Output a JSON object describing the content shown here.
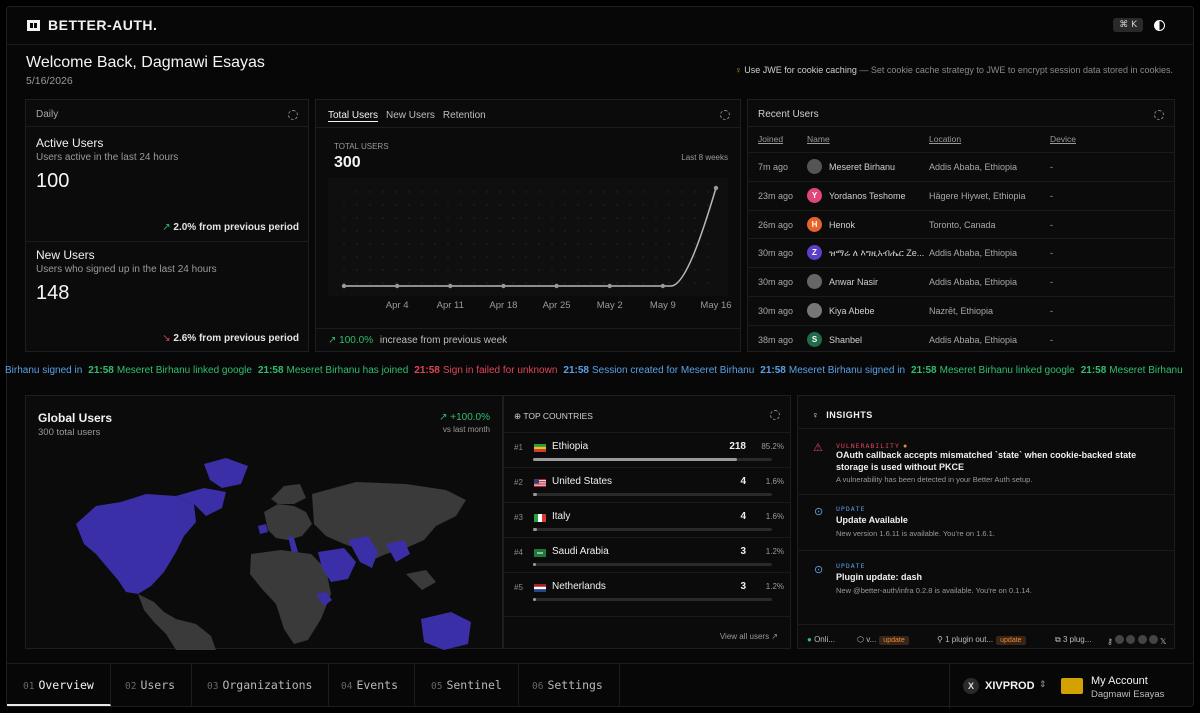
{
  "app": {
    "brand": "BETTER-AUTH.",
    "shortcut": "⌘ K"
  },
  "header": {
    "welcome": "Welcome Back, Dagmawi Esayas",
    "date": "5/16/2026",
    "tip_strong": "Use JWE for cookie caching",
    "tip_rest": "— Set cookie cache strategy to JWE to encrypt session data stored in cookies."
  },
  "daily": {
    "label": "Daily",
    "active": {
      "title": "Active Users",
      "subtitle": "Users active in the last 24 hours",
      "value": "100",
      "change": "2.0% from previous period"
    },
    "new": {
      "title": "New Users",
      "subtitle": "Users who signed up in the last 24 hours",
      "value": "148",
      "change": "2.6% from previous period"
    }
  },
  "growth": {
    "tabs": [
      "Total Users",
      "New Users",
      "Retention"
    ],
    "metric_label": "TOTAL USERS",
    "metric_value": "300",
    "range": "Last 8 weeks",
    "footer_pct": "100.0%",
    "footer_text": "increase from previous week"
  },
  "chart_data": {
    "type": "line",
    "x": [
      "",
      "Apr 4",
      "Apr 11",
      "Apr 18",
      "Apr 25",
      "May 2",
      "May 9",
      "May 16"
    ],
    "series": [
      {
        "values": [
          0,
          0,
          0,
          0,
          0,
          0,
          0,
          300
        ]
      }
    ],
    "ylim": [
      0,
      300
    ],
    "grid": "dots"
  },
  "recent": {
    "title": "Recent Users",
    "headers": [
      "Joined",
      "Name",
      "Location",
      "Device"
    ],
    "rows": [
      {
        "joined": "7m ago",
        "name": "Meseret Birhanu",
        "location": "Addis Ababa, Ethiopia",
        "device": "-",
        "initial": "",
        "color": "#555555"
      },
      {
        "joined": "23m ago",
        "name": "Yordanos Teshome",
        "location": "Hägere Hiywet, Ethiopia",
        "device": "-",
        "initial": "Y",
        "color": "#e0457b"
      },
      {
        "joined": "26m ago",
        "name": "Henok",
        "location": "Toronto, Canada",
        "device": "-",
        "initial": "H",
        "color": "#e8622c"
      },
      {
        "joined": "30m ago",
        "name": "ዝማሬ ለ እግዚአብሔር Ze...",
        "location": "Addis Ababa, Ethiopia",
        "device": "-",
        "initial": "Z",
        "color": "#5b3fc9"
      },
      {
        "joined": "30m ago",
        "name": "Anwar Nasir",
        "location": "Addis Ababa, Ethiopia",
        "device": "-",
        "initial": "",
        "color": "#666666"
      },
      {
        "joined": "30m ago",
        "name": "Kiya Abebe",
        "location": "Nazrēt, Ethiopia",
        "device": "-",
        "initial": "",
        "color": "#777777"
      },
      {
        "joined": "38m ago",
        "name": "Shanbel",
        "location": "Addis Ababa, Ethiopia",
        "device": "-",
        "initial": "S",
        "color": "#1f6b4a"
      }
    ]
  },
  "ticker": [
    {
      "time": "",
      "text": "Birhanu signed in",
      "color": "#5aa0e6"
    },
    {
      "time": "21:58",
      "text": "Meseret Birhanu linked google",
      "color": "#2fbf71"
    },
    {
      "time": "21:58",
      "text": "Meseret Birhanu has joined",
      "color": "#2fbf71"
    },
    {
      "time": "21:58",
      "text": "Sign in failed for unknown",
      "color": "#e0455a"
    },
    {
      "time": "21:58",
      "text": "Session created for Meseret Birhanu",
      "color": "#5aa0e6"
    },
    {
      "time": "21:58",
      "text": "Meseret Birhanu signed in",
      "color": "#5aa0e6"
    },
    {
      "time": "21:58",
      "text": "Meseret Birhanu linked google",
      "color": "#2fbf71"
    },
    {
      "time": "21:58",
      "text": "Meseret Birhanu",
      "color": "#2fbf71"
    }
  ],
  "global": {
    "title": "Global Users",
    "subtitle": "300 total users",
    "change": "+100.0%",
    "change_label": "vs last month"
  },
  "countries": {
    "title": "TOP COUNTRIES",
    "rows": [
      {
        "rank": "#1",
        "name": "Ethiopia",
        "count": "218",
        "pct": "85.2%",
        "share": 0.852
      },
      {
        "rank": "#2",
        "name": "United States",
        "count": "4",
        "pct": "1.6%",
        "share": 0.016
      },
      {
        "rank": "#3",
        "name": "Italy",
        "count": "4",
        "pct": "1.6%",
        "share": 0.016
      },
      {
        "rank": "#4",
        "name": "Saudi Arabia",
        "count": "3",
        "pct": "1.2%",
        "share": 0.012
      },
      {
        "rank": "#5",
        "name": "Netherlands",
        "count": "3",
        "pct": "1.2%",
        "share": 0.012
      }
    ],
    "view_all": "View all users ↗"
  },
  "insights": {
    "title": "INSIGHTS",
    "items": [
      {
        "tag": "VULNERABILITY",
        "title": "OAuth callback accepts mismatched `state` when cookie-backed state storage is used without PKCE",
        "desc": "A vulnerability has been detected in your Better Auth setup."
      },
      {
        "tag": "UPDATE",
        "title": "Update Available",
        "desc": "New version 1.6.11 is available. You're on 1.6.1."
      },
      {
        "tag": "UPDATE",
        "title": "Plugin update: dash",
        "desc": "New @better-auth/infra 0.2.8 is available. You're on 0.1.14."
      }
    ],
    "status": {
      "online": "Onli...",
      "version": "v...",
      "version_tag": "update",
      "plugins_out": "1 plugin out...",
      "plugins_tag": "update",
      "plugin_count": "3 plug..."
    }
  },
  "nav": {
    "tabs": [
      {
        "num": "01",
        "label": "Overview"
      },
      {
        "num": "02",
        "label": "Users"
      },
      {
        "num": "03",
        "label": "Organizations"
      },
      {
        "num": "04",
        "label": "Events"
      },
      {
        "num": "05",
        "label": "Sentinel"
      },
      {
        "num": "06",
        "label": "Settings"
      }
    ],
    "org_initial": "X",
    "org": "XIVPROD",
    "account_title": "My Account",
    "account_name": "Dagmawi Esayas"
  },
  "colors": {
    "accent_green": "#2fbf71",
    "accent_red": "#e0455a",
    "accent_blue": "#5aa0e6",
    "map_highlight": "#3b2fa8",
    "map_base": "#3a3a3a"
  }
}
